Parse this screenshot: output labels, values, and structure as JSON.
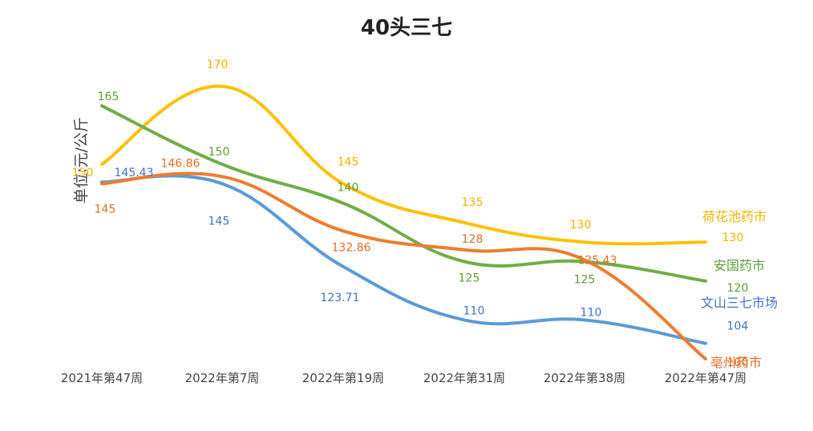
{
  "chart_data": {
    "type": "line",
    "title": "40头三七",
    "ylabel": "单位:元/公斤",
    "xlabel": "",
    "categories": [
      "2021年第47周",
      "2022年第7周",
      "2022年第19周",
      "2022年第31周",
      "2022年第38周",
      "2022年第47周"
    ],
    "ylim": [
      100,
      175
    ],
    "grid": false,
    "legend": "series labels at line ends (right)",
    "smooth": true,
    "series": [
      {
        "name": "荷花池药市",
        "color": "#ffc000",
        "values": [
          150,
          170,
          145,
          135,
          130,
          130
        ]
      },
      {
        "name": "安国药市",
        "color": "#70ad47",
        "values": [
          165,
          150,
          140,
          125,
          125,
          120
        ]
      },
      {
        "name": "文山三七市场",
        "color": "#5b9bd5",
        "values": [
          145.43,
          145,
          123.71,
          110,
          110,
          104
        ]
      },
      {
        "name": "亳州药市",
        "color": "#ed7d31",
        "values": [
          145,
          146.86,
          132.86,
          128,
          125.43,
          100
        ]
      }
    ],
    "label_colors": {
      "荷花池药市": "#f0b400",
      "安国药市": "#5a9e32",
      "文山三七市场": "#4472c4",
      "亳州药市": "#e46c24"
    }
  }
}
